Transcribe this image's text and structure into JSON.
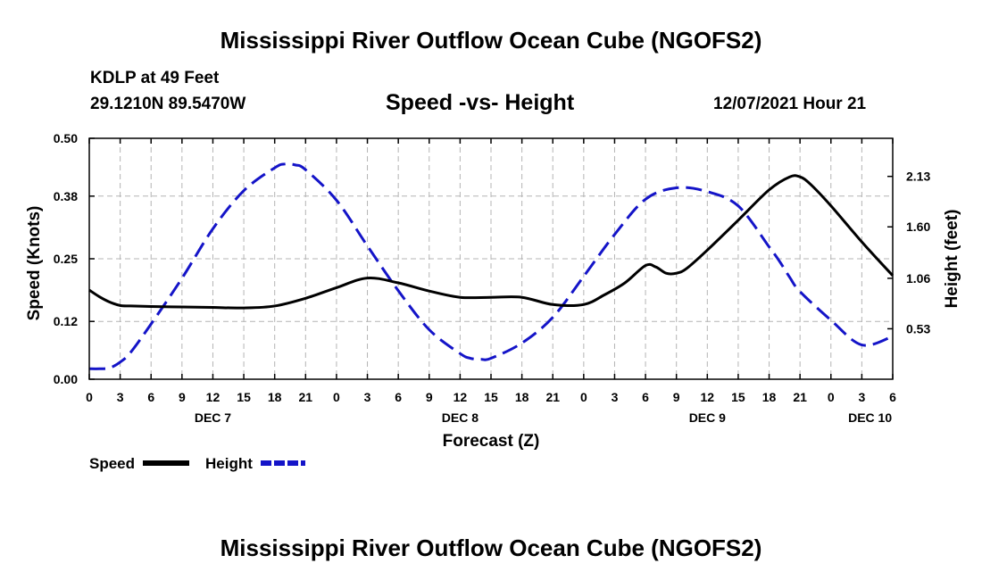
{
  "header": {
    "title": "Mississippi River Outflow Ocean Cube (NGOFS2)",
    "station": "KDLP at 49 Feet",
    "coords": "29.1210N  89.5470W",
    "subtitle": "Speed -vs- Height",
    "datetime": "12/07/2021 Hour 21"
  },
  "footer": {
    "title": "Mississippi River Outflow Ocean Cube (NGOFS2)"
  },
  "chart_data": {
    "type": "line",
    "xlabel": "Forecast (Z)",
    "ylabel": "Speed (Knots)",
    "y2label": "Height (feet)",
    "xlim": [
      0,
      78
    ],
    "ylim": [
      0,
      0.5
    ],
    "y2lim": [
      0,
      2.53
    ],
    "grid": true,
    "x_ticks": [
      0,
      3,
      6,
      9,
      12,
      15,
      18,
      21,
      24,
      27,
      30,
      33,
      36,
      39,
      42,
      45,
      48,
      51,
      54,
      57,
      60,
      63,
      66,
      69,
      72,
      75,
      78
    ],
    "x_tick_labels": [
      "0",
      "3",
      "6",
      "9",
      "12",
      "15",
      "18",
      "21",
      "0",
      "3",
      "6",
      "9",
      "12",
      "15",
      "18",
      "21",
      "0",
      "3",
      "6",
      "9",
      "12",
      "15",
      "18",
      "21",
      "0",
      "3",
      "6"
    ],
    "date_labels": [
      {
        "x": 12,
        "label": "DEC 7"
      },
      {
        "x": 36,
        "label": "DEC 8"
      },
      {
        "x": 60,
        "label": "DEC 9"
      },
      {
        "x": 75.8,
        "label": "DEC 10"
      }
    ],
    "y_ticks": [
      0,
      0.12,
      0.25,
      0.38,
      0.5
    ],
    "y_tick_labels": [
      "0.00",
      "0.12",
      "0.25",
      "0.38",
      "0.50"
    ],
    "y2_ticks": [
      0.53,
      1.06,
      1.6,
      2.13
    ],
    "y2_tick_labels": [
      "0.53",
      "1.06",
      "1.60",
      "2.13"
    ],
    "legend": [
      {
        "label": "Speed",
        "color": "#000000",
        "dashed": false
      },
      {
        "label": "Height",
        "color": "#1414c8",
        "dashed": true
      }
    ],
    "series": [
      {
        "name": "Speed",
        "axis": "left",
        "color": "#000000",
        "dashed": false,
        "x": [
          0,
          1,
          2,
          3,
          4,
          6,
          9,
          12,
          15,
          18,
          21,
          24,
          27,
          30,
          33,
          36,
          39,
          42,
          45,
          48,
          50,
          52,
          54,
          55,
          56,
          57,
          58,
          60,
          63,
          66,
          68,
          69,
          70,
          72,
          75,
          78
        ],
        "y": [
          0.185,
          0.171,
          0.16,
          0.153,
          0.152,
          0.151,
          0.15,
          0.149,
          0.148,
          0.152,
          0.168,
          0.19,
          0.21,
          0.2,
          0.183,
          0.17,
          0.17,
          0.17,
          0.155,
          0.155,
          0.175,
          0.2,
          0.236,
          0.233,
          0.22,
          0.22,
          0.23,
          0.268,
          0.33,
          0.393,
          0.42,
          0.42,
          0.405,
          0.36,
          0.285,
          0.215
        ]
      },
      {
        "name": "Height",
        "axis": "right",
        "color": "#1414c8",
        "dashed": true,
        "x": [
          0,
          1,
          2,
          3,
          4,
          6,
          9,
          12,
          15,
          18,
          19,
          20,
          21,
          24,
          27,
          30,
          33,
          36,
          37,
          38,
          39,
          42,
          45,
          48,
          51,
          54,
          57,
          60,
          63,
          66,
          67,
          68,
          69,
          72,
          75,
          78
        ],
        "y": [
          0.11,
          0.11,
          0.12,
          0.18,
          0.28,
          0.58,
          1.06,
          1.58,
          1.98,
          2.22,
          2.26,
          2.25,
          2.2,
          1.88,
          1.4,
          0.93,
          0.52,
          0.27,
          0.22,
          0.21,
          0.22,
          0.38,
          0.65,
          1.08,
          1.52,
          1.89,
          2.01,
          1.97,
          1.82,
          1.39,
          1.24,
          1.07,
          0.92,
          0.62,
          0.36,
          0.45
        ]
      }
    ]
  }
}
